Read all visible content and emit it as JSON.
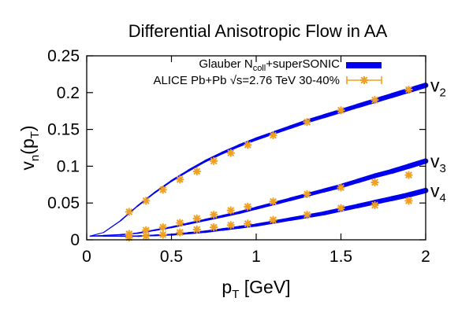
{
  "chart_data": {
    "type": "line",
    "title": "Differential Anisotropic Flow in AA",
    "xlabel": "p",
    "xlabel_sub": "T",
    "xlabel_suffix": " [GeV]",
    "ylabel": "v",
    "ylabel_sub": "n",
    "ylabel_mid": "(p",
    "ylabel_sub2": "T",
    "ylabel_end": ")",
    "xlim": [
      0,
      2
    ],
    "ylim": [
      0,
      0.25
    ],
    "xticks": [
      "0",
      "0.5",
      "1",
      "1.5",
      "2"
    ],
    "yticks": [
      "0",
      "0.05",
      "0.1",
      "0.15",
      "0.2",
      "0.25"
    ],
    "legend_position": "top-right",
    "legend": [
      {
        "name": "Glauber N",
        "sub": "coll",
        "rest": "+superSONIC",
        "color": "#0000ee",
        "style": "band"
      },
      {
        "name": "ALICE Pb+Pb √s=2.76 TeV 30-40%",
        "color": "#f0a020",
        "style": "points"
      }
    ],
    "theory": [
      {
        "label": "v",
        "sub": "2",
        "x": [
          0.02,
          0.1,
          0.2,
          0.3,
          0.4,
          0.5,
          0.6,
          0.7,
          0.8,
          0.9,
          1.0,
          1.1,
          1.2,
          1.3,
          1.4,
          1.5,
          1.6,
          1.7,
          1.8,
          1.9,
          2.0
        ],
        "y": [
          0.005,
          0.01,
          0.026,
          0.046,
          0.064,
          0.08,
          0.094,
          0.107,
          0.118,
          0.128,
          0.137,
          0.145,
          0.153,
          0.161,
          0.168,
          0.175,
          0.182,
          0.189,
          0.196,
          0.203,
          0.21
        ]
      },
      {
        "label": "v",
        "sub": "3",
        "x": [
          0.02,
          0.1,
          0.2,
          0.3,
          0.4,
          0.5,
          0.6,
          0.7,
          0.8,
          0.9,
          1.0,
          1.1,
          1.2,
          1.3,
          1.4,
          1.5,
          1.6,
          1.7,
          1.8,
          1.9,
          2.0
        ],
        "y": [
          0.005,
          0.006,
          0.007,
          0.009,
          0.013,
          0.017,
          0.022,
          0.027,
          0.032,
          0.037,
          0.043,
          0.049,
          0.055,
          0.061,
          0.067,
          0.073,
          0.08,
          0.087,
          0.093,
          0.1,
          0.107
        ]
      },
      {
        "label": "v",
        "sub": "4",
        "x": [
          0.02,
          0.1,
          0.2,
          0.3,
          0.4,
          0.5,
          0.6,
          0.7,
          0.8,
          0.9,
          1.0,
          1.1,
          1.2,
          1.3,
          1.4,
          1.5,
          1.6,
          1.7,
          1.8,
          1.9,
          2.0
        ],
        "y": [
          0.005,
          0.005,
          0.005,
          0.005,
          0.006,
          0.007,
          0.009,
          0.011,
          0.014,
          0.017,
          0.02,
          0.024,
          0.028,
          0.032,
          0.036,
          0.041,
          0.046,
          0.051,
          0.056,
          0.061,
          0.067
        ]
      }
    ],
    "data": [
      {
        "harmonic": "v2",
        "x": [
          0.25,
          0.35,
          0.45,
          0.55,
          0.65,
          0.75,
          0.85,
          0.95,
          1.1,
          1.3,
          1.5,
          1.7,
          1.9
        ],
        "y": [
          0.038,
          0.053,
          0.068,
          0.082,
          0.093,
          0.107,
          0.118,
          0.129,
          0.142,
          0.16,
          0.176,
          0.19,
          0.204
        ]
      },
      {
        "harmonic": "v3",
        "x": [
          0.25,
          0.35,
          0.45,
          0.55,
          0.65,
          0.75,
          0.85,
          0.95,
          1.1,
          1.3,
          1.5,
          1.7,
          1.9
        ],
        "y": [
          0.008,
          0.013,
          0.017,
          0.023,
          0.029,
          0.034,
          0.04,
          0.045,
          0.052,
          0.062,
          0.071,
          0.078,
          0.088
        ]
      },
      {
        "harmonic": "v4",
        "x": [
          0.25,
          0.35,
          0.45,
          0.55,
          0.65,
          0.75,
          0.85,
          0.95,
          1.1,
          1.3,
          1.5,
          1.7,
          1.9
        ],
        "y": [
          0.003,
          0.005,
          0.007,
          0.01,
          0.014,
          0.017,
          0.02,
          0.022,
          0.027,
          0.034,
          0.043,
          0.047,
          0.053
        ]
      }
    ]
  }
}
